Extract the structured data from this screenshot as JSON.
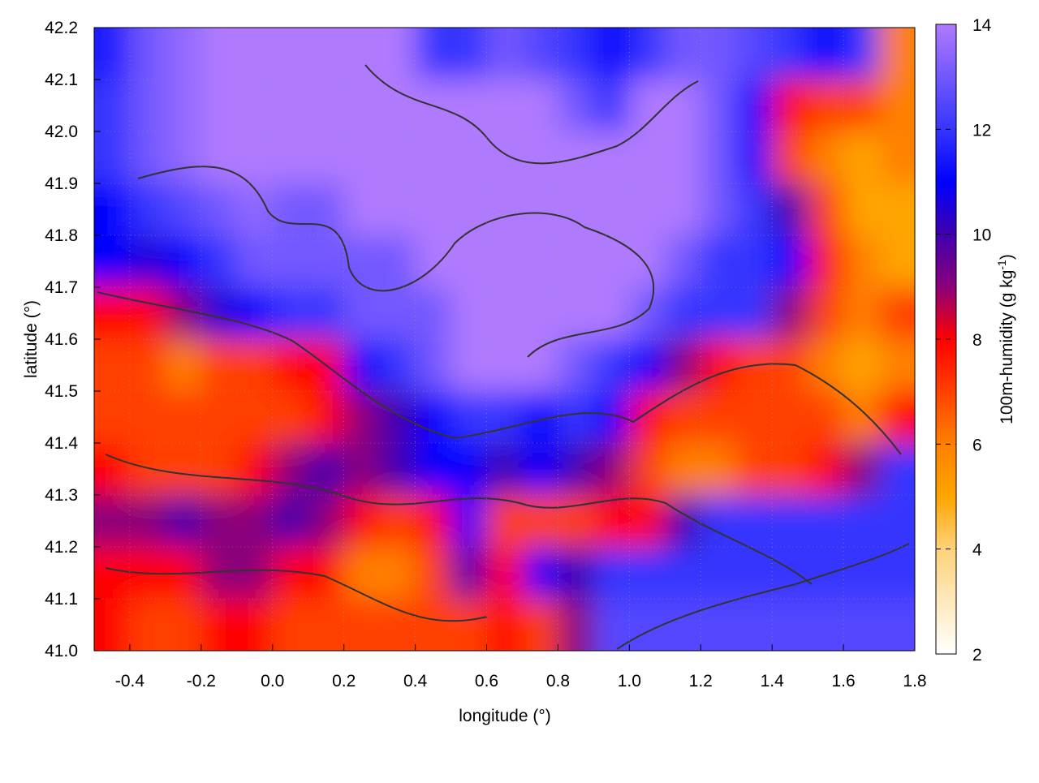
{
  "chart_data": {
    "type": "heatmap",
    "title": "",
    "xlabel": "longitude (°)",
    "ylabel": "latitude (°)",
    "colorbar_label": "100m-humidity (g kg",
    "colorbar_label_sup": "-1",
    "colorbar_label_end": ")",
    "xlim": [
      -0.5,
      1.8
    ],
    "ylim": [
      41.0,
      42.2
    ],
    "zlim": [
      2,
      14
    ],
    "xticks": [
      "-0.4",
      "-0.2",
      "0.0",
      "0.2",
      "0.4",
      "0.6",
      "0.8",
      "1.0",
      "1.2",
      "1.4",
      "1.6",
      "1.8"
    ],
    "yticks": [
      "41.0",
      "41.1",
      "41.2",
      "41.3",
      "41.4",
      "41.5",
      "41.6",
      "41.7",
      "41.8",
      "41.9",
      "42.0",
      "42.1",
      "42.2"
    ],
    "cbticks": [
      "2",
      "4",
      "6",
      "8",
      "10",
      "12",
      "14"
    ],
    "grid": true,
    "contours": true,
    "colormap": [
      {
        "v": 2,
        "c": "#ffffff"
      },
      {
        "v": 4,
        "c": "#fdd27a"
      },
      {
        "v": 5,
        "c": "#ffa500"
      },
      {
        "v": 6,
        "c": "#ff8000"
      },
      {
        "v": 8,
        "c": "#ff0000"
      },
      {
        "v": 9,
        "c": "#8a007a"
      },
      {
        "v": 10,
        "c": "#4000b0"
      },
      {
        "v": 11,
        "c": "#0000ff"
      },
      {
        "v": 12,
        "c": "#3535ff"
      },
      {
        "v": 14,
        "c": "#b07aff"
      }
    ],
    "x_centers": [
      -0.45,
      -0.35,
      -0.25,
      -0.15,
      -0.05,
      0.05,
      0.15,
      0.25,
      0.35,
      0.45,
      0.55,
      0.65,
      0.75,
      0.85,
      0.95,
      1.05,
      1.15,
      1.25,
      1.35,
      1.45,
      1.55,
      1.65,
      1.75
    ],
    "y_centers": [
      42.15,
      42.05,
      41.95,
      41.85,
      41.75,
      41.65,
      41.55,
      41.45,
      41.35,
      41.25,
      41.15,
      41.05
    ],
    "z": [
      [
        11.5,
        13,
        13.5,
        14,
        14,
        14,
        14,
        14,
        14,
        12,
        12,
        13,
        12.5,
        12,
        11,
        12,
        13,
        13,
        12.5,
        12,
        11,
        12,
        6
      ],
      [
        12,
        13,
        13.5,
        14,
        14,
        14,
        14,
        14,
        14,
        14,
        14,
        14,
        14,
        13,
        12,
        14,
        14,
        13,
        11,
        8,
        7,
        7,
        6
      ],
      [
        12,
        13,
        13.5,
        14,
        14,
        14,
        14,
        14,
        14,
        14,
        14,
        14,
        14,
        14,
        14,
        14,
        14,
        13,
        11,
        7,
        6,
        5,
        6
      ],
      [
        11,
        12,
        12.5,
        13,
        13.5,
        13,
        13,
        14,
        14,
        14,
        14,
        14,
        14,
        14,
        14,
        14,
        14,
        13,
        12,
        10,
        7,
        5,
        5
      ],
      [
        11,
        10.5,
        11,
        12,
        13,
        13,
        13,
        13,
        13,
        14,
        14,
        14,
        14,
        14,
        14,
        14,
        13,
        12,
        12,
        11,
        8,
        6,
        5
      ],
      [
        8,
        8,
        9,
        10.5,
        11,
        12,
        12,
        13,
        13,
        13,
        14,
        14,
        14,
        14,
        14,
        13,
        12,
        12,
        12,
        9,
        7,
        6,
        7
      ],
      [
        7,
        7,
        6,
        7,
        7,
        8,
        8,
        11,
        12,
        13,
        14,
        14,
        14,
        13,
        12,
        11,
        9,
        8,
        7,
        7,
        6,
        5,
        6
      ],
      [
        7,
        7,
        7,
        7,
        7,
        7,
        8,
        9,
        10,
        11,
        12,
        12,
        11,
        12,
        11,
        8,
        7,
        7,
        7,
        7,
        7,
        6,
        8
      ],
      [
        8,
        7,
        7,
        7,
        8,
        9,
        10,
        9,
        10,
        11,
        11,
        10,
        11,
        10,
        9,
        7,
        6,
        6,
        7,
        7,
        8,
        9,
        12
      ],
      [
        9,
        9,
        10,
        9,
        9,
        10,
        9,
        8,
        7,
        8,
        11,
        7,
        7,
        7,
        8,
        8,
        10,
        12,
        12,
        12,
        12,
        12,
        12
      ],
      [
        8,
        8,
        8,
        9,
        9,
        8,
        8,
        6,
        6,
        7,
        10,
        8,
        11,
        10,
        12,
        12,
        12,
        12,
        12,
        12,
        12,
        12,
        12
      ],
      [
        8,
        7,
        7,
        8,
        8,
        7,
        7,
        7,
        7,
        7,
        7,
        8,
        7,
        9,
        12.5,
        12.5,
        12.5,
        12.5,
        12.5,
        12.5,
        12.5,
        12.5,
        12.5
      ]
    ]
  }
}
